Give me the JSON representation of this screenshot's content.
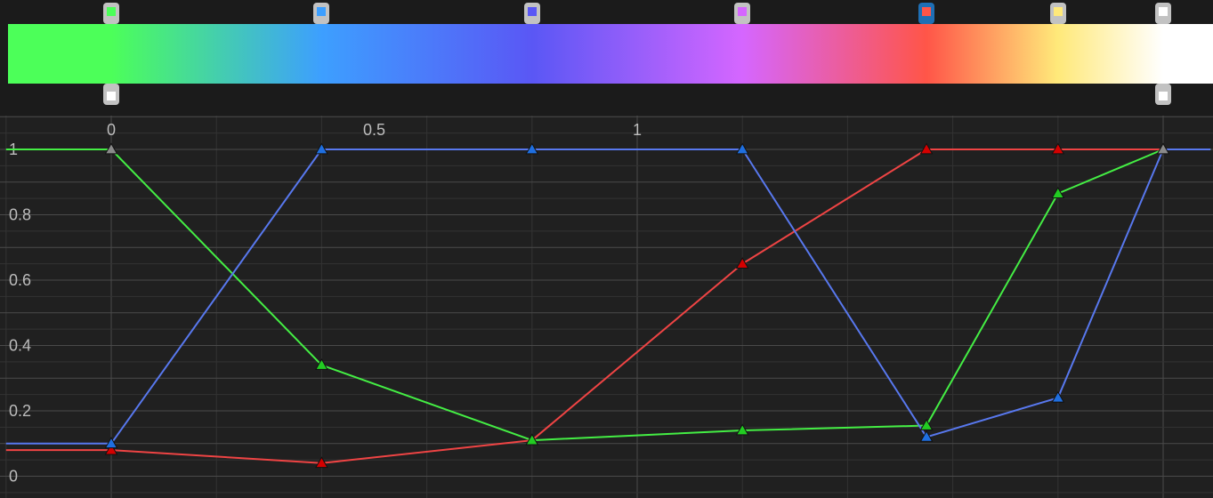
{
  "chart_data": {
    "type": "line",
    "title": "",
    "xlabel": "",
    "ylabel": "",
    "xlim": [
      -0.2,
      2.09
    ],
    "ylim": [
      -0.06,
      1.13
    ],
    "x_ticks": [
      "0",
      "0.5",
      "1"
    ],
    "y_ticks": [
      "1",
      "0.8",
      "0.6",
      "0.4",
      "0.2",
      "0"
    ],
    "grid": true,
    "series": [
      {
        "color": "#ef4444",
        "marker_color": "#d40000",
        "x": [
          -0.2,
          0.0,
          0.4,
          0.8,
          1.2,
          1.55,
          1.8,
          2.0,
          2.09
        ],
        "y": [
          0.08,
          0.08,
          0.04,
          0.11,
          0.65,
          1.0,
          1.0,
          1.0,
          1.0
        ]
      },
      {
        "color": "#44ee44",
        "marker_color": "#22cc22",
        "x": [
          -0.2,
          0.0,
          0.4,
          0.8,
          1.2,
          1.55,
          1.8,
          2.0,
          2.09
        ],
        "y": [
          1.0,
          1.0,
          0.34,
          0.11,
          0.14,
          0.155,
          0.865,
          1.0,
          1.0
        ]
      },
      {
        "color": "#5878ee",
        "marker_color": "#1f6fe0",
        "x": [
          -0.2,
          0.0,
          0.4,
          0.8,
          1.2,
          1.55,
          1.8,
          2.0,
          2.09
        ],
        "y": [
          0.1,
          0.1,
          1.0,
          1.0,
          1.0,
          0.12,
          0.24,
          1.0,
          1.0
        ]
      }
    ],
    "gray_markers_x": [
      0.0,
      2.0
    ],
    "markers_x": [
      0.0,
      0.4,
      0.8,
      1.2,
      1.55,
      1.8,
      2.0
    ]
  },
  "gradient": {
    "color_stops": [
      {
        "x": 0.0,
        "color": "#4cff59",
        "selected": false
      },
      {
        "x": 0.4,
        "color": "#3d9fff",
        "selected": false
      },
      {
        "x": 0.8,
        "color": "#5a57f5",
        "selected": false
      },
      {
        "x": 1.2,
        "color": "#d566ff",
        "selected": false
      },
      {
        "x": 1.55,
        "color": "#ff5548",
        "selected": true
      },
      {
        "x": 1.8,
        "color": "#ffe97a",
        "selected": false
      },
      {
        "x": 2.0,
        "color": "#ffffff",
        "selected": false
      }
    ],
    "alpha_stops": [
      {
        "x": 0.0,
        "color": "#ffffff"
      },
      {
        "x": 2.0,
        "color": "#ffffff"
      }
    ]
  },
  "colors": {
    "background": "#202020",
    "grid_major": "#4a4a4a",
    "grid_minor": "#333333",
    "stop_body": "#c2c2c2",
    "stop_selected": "#1f6fb5"
  }
}
